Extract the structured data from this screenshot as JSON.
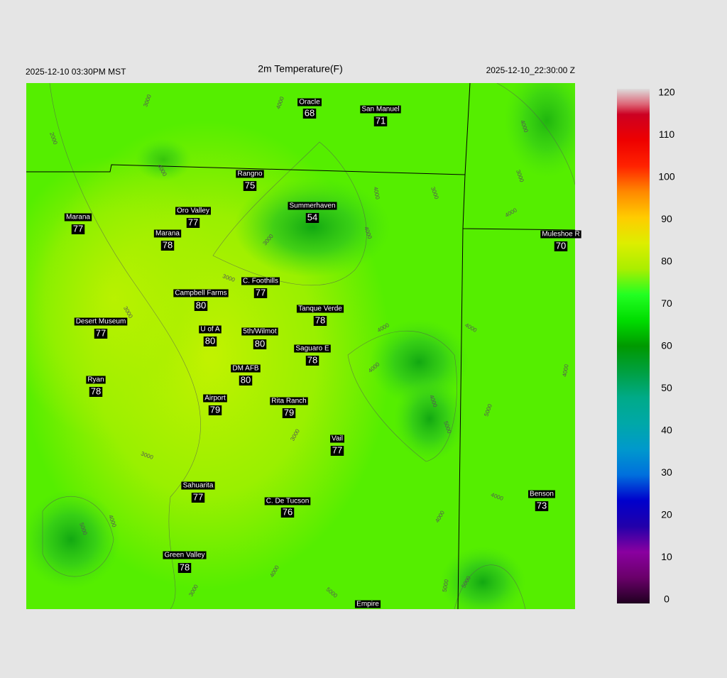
{
  "header": {
    "local_time": "2025-12-10 03:30PM MST",
    "title": "2m Temperature(F)",
    "utc_time": "2025-12-10_22:30:00 Z"
  },
  "stations": [
    {
      "name": "Oracle",
      "value": 68
    },
    {
      "name": "San Manuel",
      "value": 71
    },
    {
      "name": "Rangno",
      "value": 75
    },
    {
      "name": "Summerhaven",
      "value": 54
    },
    {
      "name": "Marana",
      "value": 77
    },
    {
      "name": "Oro Valley",
      "value": 77
    },
    {
      "name": "Marana",
      "value": 78
    },
    {
      "name": "Muleshoe R",
      "value": 70
    },
    {
      "name": "C. Foothills",
      "value": 77
    },
    {
      "name": "Campbell Farms",
      "value": 80
    },
    {
      "name": "Tanque Verde",
      "value": 78
    },
    {
      "name": "Desert Museum",
      "value": 77
    },
    {
      "name": "U of A",
      "value": 80
    },
    {
      "name": "5th/Wilmot",
      "value": 80
    },
    {
      "name": "Saguaro E",
      "value": 78
    },
    {
      "name": "DM AFB",
      "value": 80
    },
    {
      "name": "Ryan",
      "value": 78
    },
    {
      "name": "Airport",
      "value": 79
    },
    {
      "name": "Rita Ranch",
      "value": 79
    },
    {
      "name": "Vail",
      "value": 77
    },
    {
      "name": "Sahuarita",
      "value": 77
    },
    {
      "name": "C. De Tucson",
      "value": 76
    },
    {
      "name": "Benson",
      "value": 73
    },
    {
      "name": "Green Valley",
      "value": 78
    },
    {
      "name": "Empire"
    }
  ],
  "contour_labels": [
    "3000",
    "2000",
    "4000",
    "4000",
    "3000",
    "4000",
    "4000",
    "3000",
    "4000",
    "4000",
    "3000",
    "3000",
    "3000",
    "4000",
    "4000",
    "4000",
    "4000",
    "5000",
    "4000",
    "5000",
    "3000",
    "3000",
    "4000",
    "5000",
    "4000",
    "4000",
    "4000",
    "5000",
    "3000",
    "5000",
    "5000"
  ],
  "colorbar": {
    "lim": [
      0,
      120
    ],
    "ticks": [
      0,
      10,
      20,
      30,
      40,
      50,
      60,
      70,
      80,
      90,
      100,
      110,
      120
    ]
  }
}
